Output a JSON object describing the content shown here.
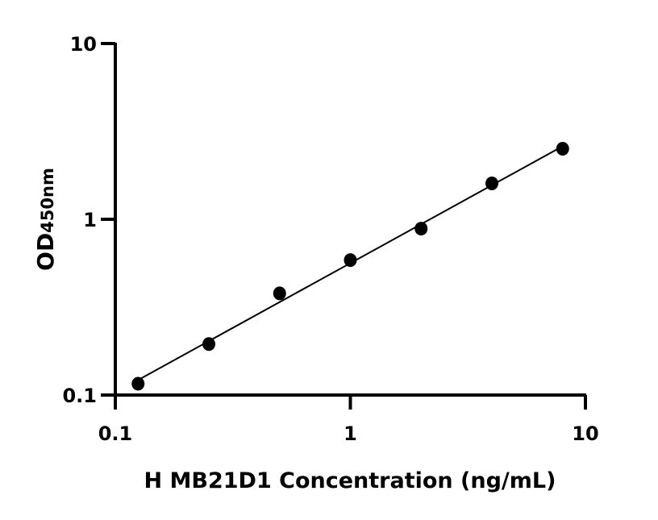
{
  "chart_data": {
    "type": "scatter",
    "title": "",
    "xlabel": "H MB21D1 Concentration (ng/mL)",
    "ylabel_main": "OD",
    "ylabel_sub": "450nm",
    "x_scale": "log",
    "y_scale": "log",
    "xlim": [
      0.1,
      10
    ],
    "ylim": [
      0.1,
      10
    ],
    "x_ticks": [
      "0.1",
      "1",
      "10"
    ],
    "y_ticks": [
      "0.1",
      "1",
      "10"
    ],
    "grid": false,
    "series": [
      {
        "x": [
          0.125,
          0.25,
          0.5,
          1,
          2,
          4,
          8
        ],
        "y": [
          0.116,
          0.195,
          0.379,
          0.586,
          0.885,
          1.6,
          2.52
        ],
        "fit_line": true
      }
    ],
    "colors": {
      "marker": "#000000",
      "line": "#000000"
    }
  }
}
